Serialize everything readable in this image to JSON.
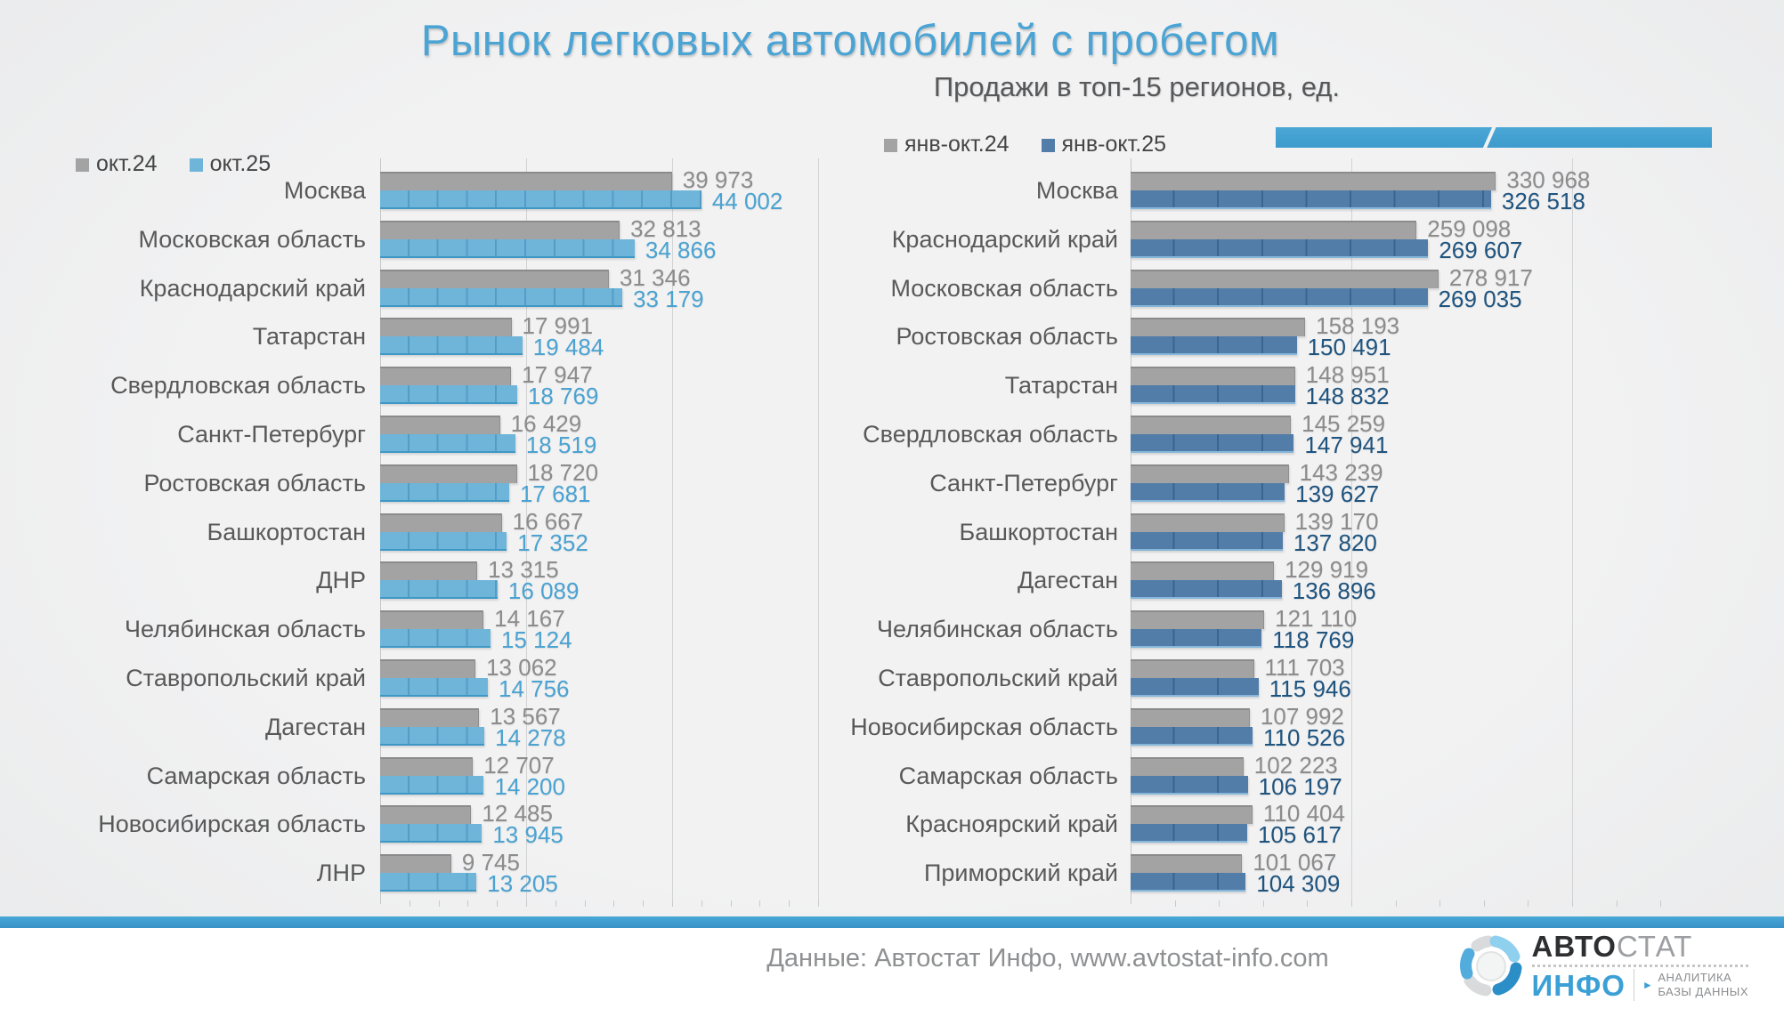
{
  "page": {
    "title": "Рынок легковых автомобилей с пробегом",
    "subtitle": "Продажи в топ-15 регионов, ед.",
    "footer_source": "Данные: Автостат Инфо, www.avtostat-info.com",
    "background": "#f0f1f2",
    "accent_blue": "#3d9bcd"
  },
  "brand": {
    "logo": {
      "line1_bold": "АВТО",
      "line1_light": "СТАТ",
      "line2": "ИНФО",
      "tagline1": "АНАЛИТИКА",
      "tagline2": "БАЗЫ ДАННЫХ"
    }
  },
  "chart_data": [
    {
      "type": "bar",
      "orientation": "horizontal",
      "legend": [
        "окт.24",
        "окт.25"
      ],
      "legend_position": "top-left",
      "series_colors": [
        "#a3a3a3",
        "#6fb4d9"
      ],
      "value_label_colors": [
        "#8c8c8c",
        "#4aa3d2"
      ],
      "axis_max": 60000,
      "gridlines": [
        20000,
        40000,
        60000
      ],
      "minor_unit": 4000,
      "grid": true,
      "categories": [
        "Москва",
        "Московская область",
        "Краснодарский край",
        "Татарстан",
        "Свердловская область",
        "Санкт-Петербург",
        "Ростовская область",
        "Башкортостан",
        "ДНР",
        "Челябинская область",
        "Ставропольский край",
        "Дагестан",
        "Самарская область",
        "Новосибирская область",
        "ЛНР"
      ],
      "series": [
        {
          "name": "окт.24",
          "values": [
            39973,
            32813,
            31346,
            17991,
            17947,
            16429,
            18720,
            16667,
            13315,
            14167,
            13062,
            13567,
            12707,
            12485,
            9745
          ]
        },
        {
          "name": "окт.25",
          "values": [
            44002,
            34866,
            33179,
            19484,
            18769,
            18519,
            17681,
            17352,
            16089,
            15124,
            14756,
            14278,
            14200,
            13945,
            13205
          ]
        }
      ]
    },
    {
      "type": "bar",
      "orientation": "horizontal",
      "legend": [
        "янв-окт.24",
        "янв-окт.25"
      ],
      "legend_position": "top-left",
      "series_colors": [
        "#a3a3a3",
        "#527da9"
      ],
      "value_label_colors": [
        "#8c8c8c",
        "#1f547f"
      ],
      "axis_max": 500000,
      "gridlines": [
        200000,
        400000
      ],
      "minor_unit": 40000,
      "grid": true,
      "categories": [
        "Москва",
        "Краснодарский край",
        "Московская область",
        "Ростовская область",
        "Татарстан",
        "Свердловская область",
        "Санкт-Петербург",
        "Башкортостан",
        "Дагестан",
        "Челябинская область",
        "Ставропольский край",
        "Новосибирская область",
        "Самарская область",
        "Красноярский край",
        "Приморский край"
      ],
      "series": [
        {
          "name": "янв-окт.24",
          "values": [
            330968,
            259098,
            278917,
            158193,
            148951,
            145259,
            143239,
            139170,
            129919,
            121110,
            111703,
            107992,
            102223,
            110404,
            101067
          ]
        },
        {
          "name": "янв-окт.25",
          "values": [
            326518,
            269607,
            269035,
            150491,
            148832,
            147941,
            139627,
            137820,
            136896,
            118769,
            115946,
            110526,
            106197,
            105617,
            104309
          ]
        }
      ]
    }
  ]
}
